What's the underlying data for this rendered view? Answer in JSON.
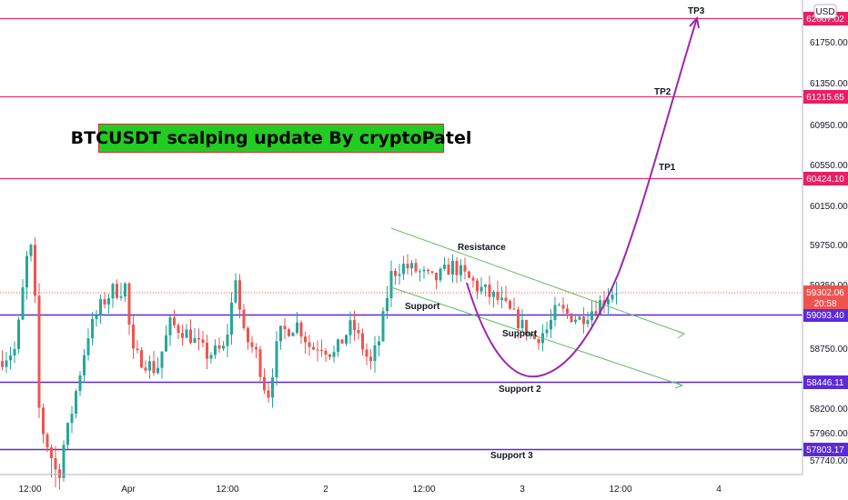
{
  "chart_data": {
    "type": "candlestick",
    "title": "BTCUSDT scalping update By cryptoPatel",
    "currency": "USD",
    "y_ticks": [
      61750,
      61350,
      60950,
      60550,
      60150,
      59750,
      59350,
      58750,
      58200,
      57960,
      57740
    ],
    "y_tick_labels": [
      "61750.00",
      "61350.00",
      "60950.00",
      "60550.00",
      "60150.00",
      "59750.00",
      "59350.00",
      "58750.00",
      "58200.00",
      "57960.00",
      "57740.00"
    ],
    "x_tick_labels": [
      "12:00",
      "Apr",
      "12:00",
      "2",
      "12:00",
      "3",
      "12:00",
      "4"
    ],
    "levels": [
      {
        "label": "TP3",
        "price": 62007.02,
        "price_text": "62007.02",
        "color": "#e91e63"
      },
      {
        "label": "TP2",
        "price": 61215.65,
        "price_text": "61215.65",
        "color": "#e91e63"
      },
      {
        "label": "TP1",
        "price": 60424.1,
        "price_text": "60424.10",
        "color": "#e91e63"
      },
      {
        "label": "Support",
        "price": 59093.4,
        "price_text": "59093.40",
        "color": "#5b2bd6"
      },
      {
        "label": "Support 2",
        "price": 58446.11,
        "price_text": "58446.11",
        "color": "#5b2bd6"
      },
      {
        "label": "Support 3",
        "price": 57803.17,
        "price_text": "57803.17",
        "color": "#5b2bd6"
      }
    ],
    "current_price": {
      "value": 59302.06,
      "value_text": "59302.06",
      "countdown": "20:58",
      "color": "#ef5350"
    },
    "annotations": [
      "Resistance",
      "Support",
      "Support",
      "Support 2",
      "Support 3",
      "TP1",
      "TP2",
      "TP3"
    ],
    "colors": {
      "up": "#26a69a",
      "down": "#ef5350",
      "channel": "#66bb6a",
      "projection": "#9c27b0"
    }
  }
}
